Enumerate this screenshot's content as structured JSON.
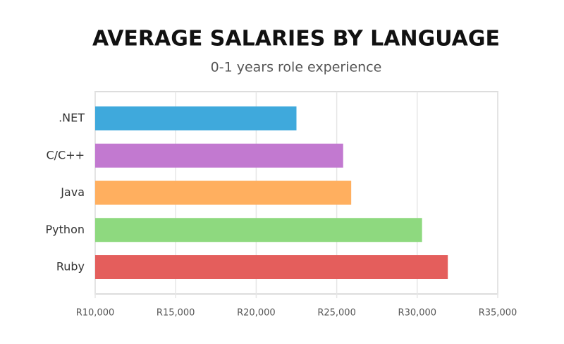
{
  "chart_data": {
    "type": "bar",
    "orientation": "horizontal",
    "title": "AVERAGE SALARIES BY LANGUAGE",
    "subtitle": "0-1 years role experience",
    "categories": [
      ".NET",
      "C/C++",
      "Java",
      "Python",
      "Ruby"
    ],
    "values": [
      22500,
      25400,
      25900,
      30300,
      31900
    ],
    "colors": [
      "#3fa9dc",
      "#c279d0",
      "#ffaf5f",
      "#8ed97f",
      "#e45e5c"
    ],
    "xlim": [
      10000,
      35000
    ],
    "xticks": [
      {
        "value": 10000,
        "label": "R10,000"
      },
      {
        "value": 15000,
        "label": "R15,000"
      },
      {
        "value": 20000,
        "label": "R20,000"
      },
      {
        "value": 25000,
        "label": "R25,000"
      },
      {
        "value": 30000,
        "label": "R30,000"
      },
      {
        "value": 35000,
        "label": "R35,000"
      }
    ],
    "grid": true
  }
}
